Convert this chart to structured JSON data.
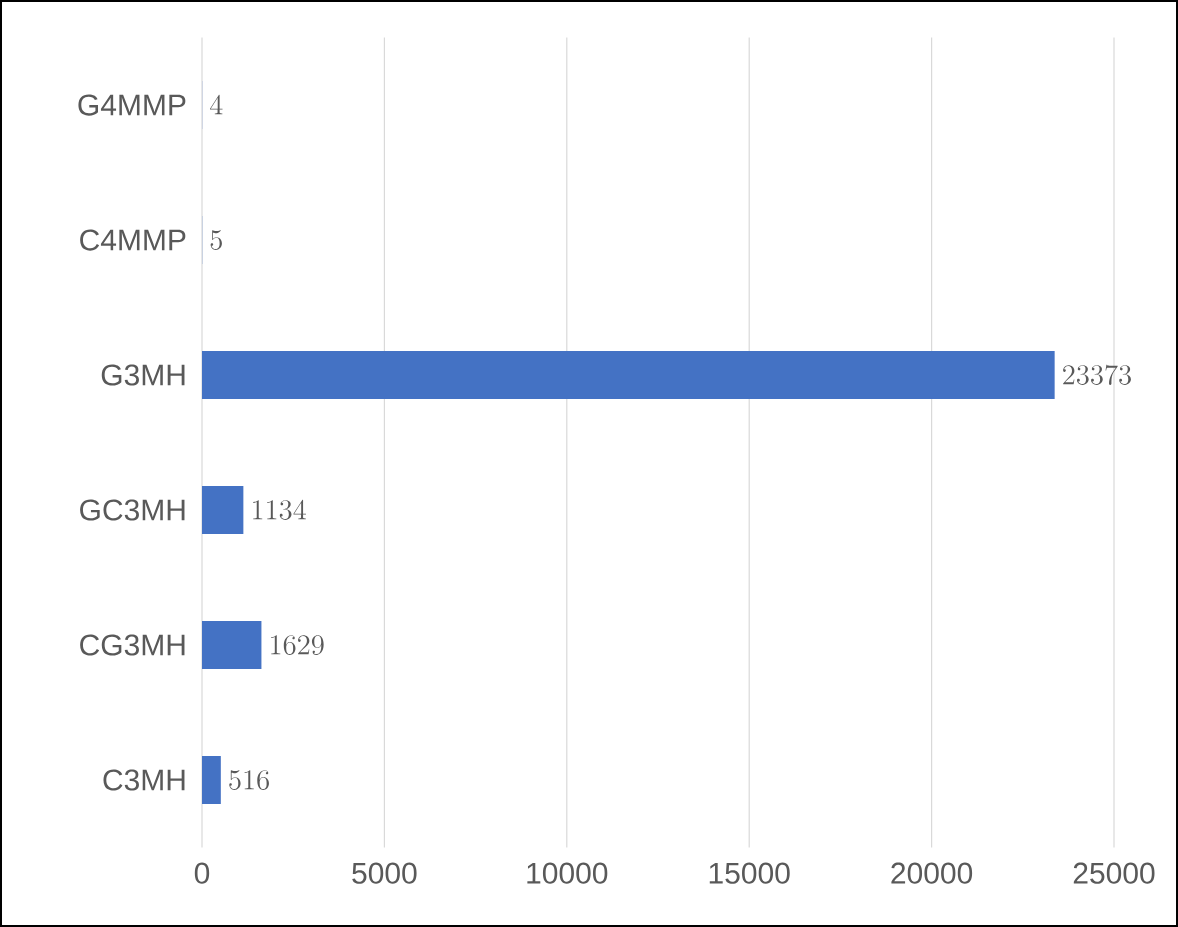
{
  "chart_data": {
    "type": "bar",
    "orientation": "horizontal",
    "categories": [
      "G4MMP",
      "C4MMP",
      "G3MH",
      "GC3MH",
      "CG3MH",
      "C3MH"
    ],
    "values": [
      4,
      5,
      23373,
      1134,
      1629,
      516
    ],
    "color": "#4472c4",
    "xlim": [
      0,
      25000
    ],
    "xticks": [
      0,
      5000,
      10000,
      15000,
      20000,
      25000
    ],
    "grid": "x",
    "data_labels": true
  }
}
